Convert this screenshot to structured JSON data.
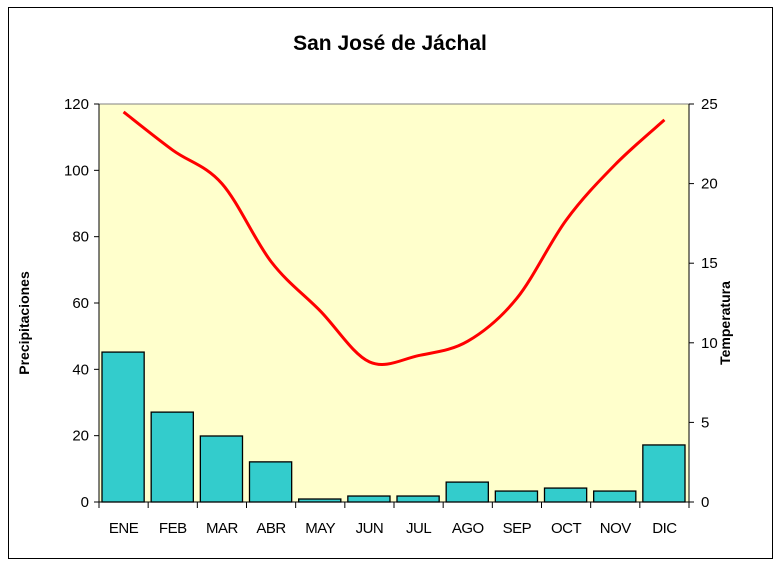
{
  "chart_data": {
    "type": "bar+line",
    "title": "San José de Jáchal",
    "categories": [
      "ENE",
      "FEB",
      "MAR",
      "ABR",
      "MAY",
      "JUN",
      "JUL",
      "AGO",
      "SEP",
      "OCT",
      "NOV",
      "DIC"
    ],
    "series": [
      {
        "name": "Precipitaciones",
        "type": "bar",
        "axis": "left",
        "color": "#33CCCC",
        "values": [
          45.2,
          27.1,
          19.9,
          12.1,
          0.9,
          1.8,
          1.8,
          6.0,
          3.3,
          4.2,
          3.3,
          17.2
        ]
      },
      {
        "name": "Temperatura",
        "type": "line",
        "axis": "right",
        "color": "#FF0000",
        "values": [
          24.5,
          22.1,
          20.0,
          15.1,
          12.0,
          8.8,
          9.2,
          10.1,
          12.8,
          17.7,
          21.2,
          24.0
        ]
      }
    ],
    "ylabel": "Precipitaciones",
    "y2label": "Temperatura",
    "ylim": [
      0,
      120
    ],
    "y2lim": [
      0,
      25
    ],
    "yticks": [
      0,
      20,
      40,
      60,
      80,
      100,
      120
    ],
    "y2ticks": [
      0,
      5,
      10,
      15,
      20,
      25
    ],
    "grid": false,
    "plot_background": "#FFFFCC"
  }
}
